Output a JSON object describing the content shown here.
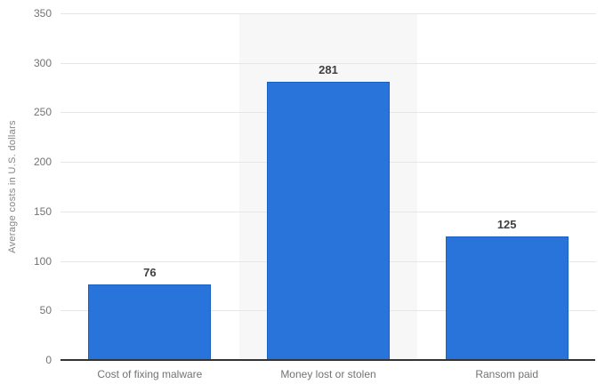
{
  "chart_data": {
    "type": "bar",
    "title": "",
    "categories": [
      "Cost of fixing malware",
      "Money lost or stolen",
      "Ransom paid"
    ],
    "values": [
      76,
      281,
      125
    ],
    "xlabel": "",
    "ylabel": "Average costs in U.S. dollars",
    "ylim": [
      0,
      350
    ],
    "yticks": [
      0,
      50,
      100,
      150,
      200,
      250,
      300,
      350
    ],
    "grid": true,
    "legend": false,
    "highlighted_column_index": 1,
    "colors": {
      "bar_fill": "#2874da",
      "bar_border": "#1b61c2",
      "plot_band": "#f7f7f7",
      "gridline": "#e6e6e6",
      "axis_line": "#333333",
      "tick_label": "#737373",
      "value_label": "#404040"
    }
  }
}
